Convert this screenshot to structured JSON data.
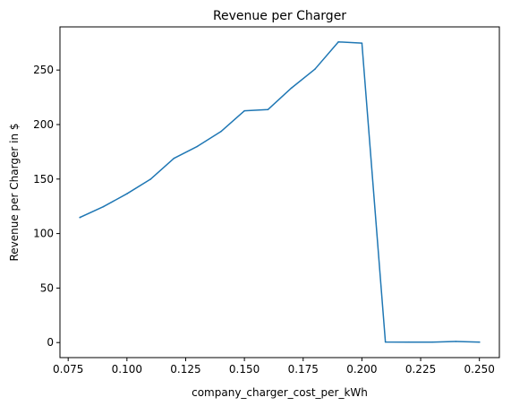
{
  "chart_data": {
    "type": "line",
    "title": "Revenue per Charger",
    "xlabel": "company_charger_cost_per_kWh",
    "ylabel": "Revenue per Charger in $",
    "xlim": [
      0.0715,
      0.2585
    ],
    "ylim": [
      -13.8,
      289.6
    ],
    "grid": false,
    "x_ticks": [
      0.075,
      0.1,
      0.125,
      0.15,
      0.175,
      0.2,
      0.225,
      0.25
    ],
    "x_tick_labels": [
      "0.075",
      "0.100",
      "0.125",
      "0.150",
      "0.175",
      "0.200",
      "0.225",
      "0.250"
    ],
    "y_ticks": [
      0,
      50,
      100,
      150,
      200,
      250
    ],
    "y_tick_labels": [
      "0",
      "50",
      "100",
      "150",
      "200",
      "250"
    ],
    "series": [
      {
        "color": "#1f77b4",
        "x": [
          0.08,
          0.09,
          0.1,
          0.11,
          0.12,
          0.13,
          0.14,
          0.15,
          0.16,
          0.17,
          0.18,
          0.19,
          0.2,
          0.21,
          0.22,
          0.23,
          0.24,
          0.25
        ],
        "y": [
          114.8,
          124.7,
          136.5,
          149.8,
          169.0,
          180.0,
          193.6,
          212.6,
          213.7,
          233.5,
          250.8,
          275.8,
          274.7,
          0.5,
          0.4,
          0.4,
          1.0,
          0.4
        ]
      }
    ]
  }
}
